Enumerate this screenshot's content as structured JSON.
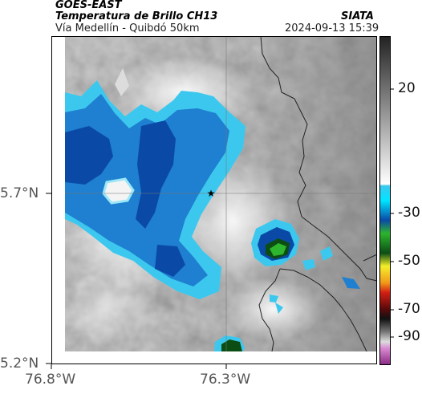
{
  "header": {
    "source": "GOES-EAST",
    "product": "Temperatura de Brillo CH13",
    "route": "Vía Medellín - Quibdó 50km",
    "org": "SIATA",
    "datetime": "2024-09-13 15:39"
  },
  "axes": {
    "x_ticks": [
      "76.8°W",
      "76.3°W"
    ],
    "y_ticks": [
      "5.7°N",
      "5.2°N"
    ]
  },
  "colorbar": {
    "ticks": [
      "20",
      "-30",
      "-50",
      "-70",
      "-90"
    ],
    "colors": {
      "deep_blue": "#0a4aa6",
      "blue": "#1f7fd0",
      "light_blue": "#3cc8ee",
      "cyan": "#00e5ff",
      "green": "#2db52d",
      "dark_green": "#0c4d14",
      "yellow": "#f4ef2a",
      "red": "#d21f14",
      "black": "#111111",
      "magenta": "#b03aa8"
    }
  },
  "marker": {
    "symbol": "★"
  }
}
